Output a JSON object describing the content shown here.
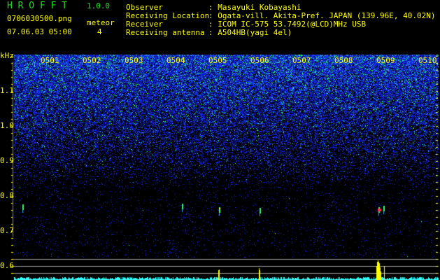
{
  "header": {
    "app_name": "H R O F F T",
    "version": "1.0.0",
    "filename": "0706030500.png",
    "datetime": "07.06.03 05:00",
    "meteor_label": "meteor",
    "meteor_count": "4"
  },
  "info": {
    "observer_label": "Observer",
    "observer": "Masayuki Kobayashi",
    "location_label": "Receiving Location",
    "location": "Ogata-vill. Akita-Pref. JAPAN (139.96E, 40.02N)",
    "receiver_label": "Receiver",
    "receiver": "ICOM IC-575 53.7492(@LCD)MHz USB",
    "antenna_label": "Receiving antenna",
    "antenna": "A504HB(yagi 4el)",
    "separator": ":"
  },
  "spectrogram": {
    "freq_unit": "kHz",
    "time_labels": [
      "0501",
      "0502",
      "0503",
      "0504",
      "0505",
      "0506",
      "0507",
      "0508",
      "0509",
      "0510"
    ],
    "freq_labels": [
      "1.1",
      "1.0",
      "0.9",
      "0.8",
      "0.7",
      "0.6"
    ],
    "colors": {
      "noise": "#1a2cff",
      "signal": "#33ff66",
      "strong": "#ff2255",
      "bars": "#33ffff",
      "meteor_bars": "#ffff00",
      "guide_lines": "#999999"
    }
  }
}
